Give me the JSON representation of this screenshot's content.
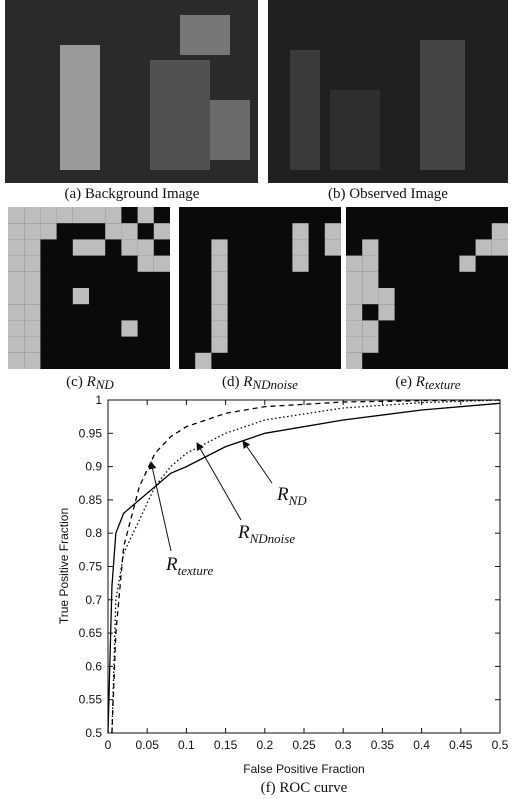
{
  "panels": {
    "a": {
      "caption": "(a) Background Image"
    },
    "b": {
      "caption": "(b) Observed Image"
    },
    "c": {
      "letter": "(c)"
    },
    "d": {
      "letter": "(d)"
    },
    "e": {
      "letter": "(e)"
    }
  },
  "figure_caption": "(f) ROC curve",
  "chart_data": {
    "type": "line",
    "xlabel": "False Positive Fraction",
    "ylabel": "True Positive Fraction",
    "x": [
      0,
      0.005,
      0.01,
      0.02,
      0.04,
      0.06,
      0.08,
      0.1,
      0.15,
      0.2,
      0.3,
      0.4,
      0.5
    ],
    "xlim": [
      0,
      0.5
    ],
    "xticks": [
      0,
      0.05,
      0.1,
      0.15,
      0.2,
      0.25,
      0.3,
      0.35,
      0.4,
      0.45,
      0.5
    ],
    "ylim": [
      0.5,
      1
    ],
    "yticks": [
      0.5,
      0.55,
      0.6,
      0.65,
      0.7,
      0.75,
      0.8,
      0.85,
      0.9,
      0.95,
      1
    ],
    "series": [
      {
        "name": {
          "main": "R",
          "sub": "ND"
        },
        "color": "#000000",
        "dash": "solid",
        "values": [
          0.5,
          0.72,
          0.8,
          0.83,
          0.85,
          0.87,
          0.89,
          0.9,
          0.93,
          0.95,
          0.97,
          0.985,
          0.995
        ]
      },
      {
        "name": {
          "main": "R",
          "sub": "NDnoise"
        },
        "color": "#000000",
        "dash": "dotted",
        "values": [
          null,
          0.5,
          0.7,
          0.77,
          0.82,
          0.87,
          0.9,
          0.92,
          0.95,
          0.97,
          0.988,
          0.996,
          1
        ]
      },
      {
        "name": {
          "main": "R",
          "sub": "texture"
        },
        "color": "#000000",
        "dash": "dashed",
        "values": [
          null,
          0.5,
          0.65,
          0.78,
          0.87,
          0.92,
          0.945,
          0.96,
          0.98,
          0.99,
          0.997,
          0.999,
          1
        ]
      }
    ]
  }
}
